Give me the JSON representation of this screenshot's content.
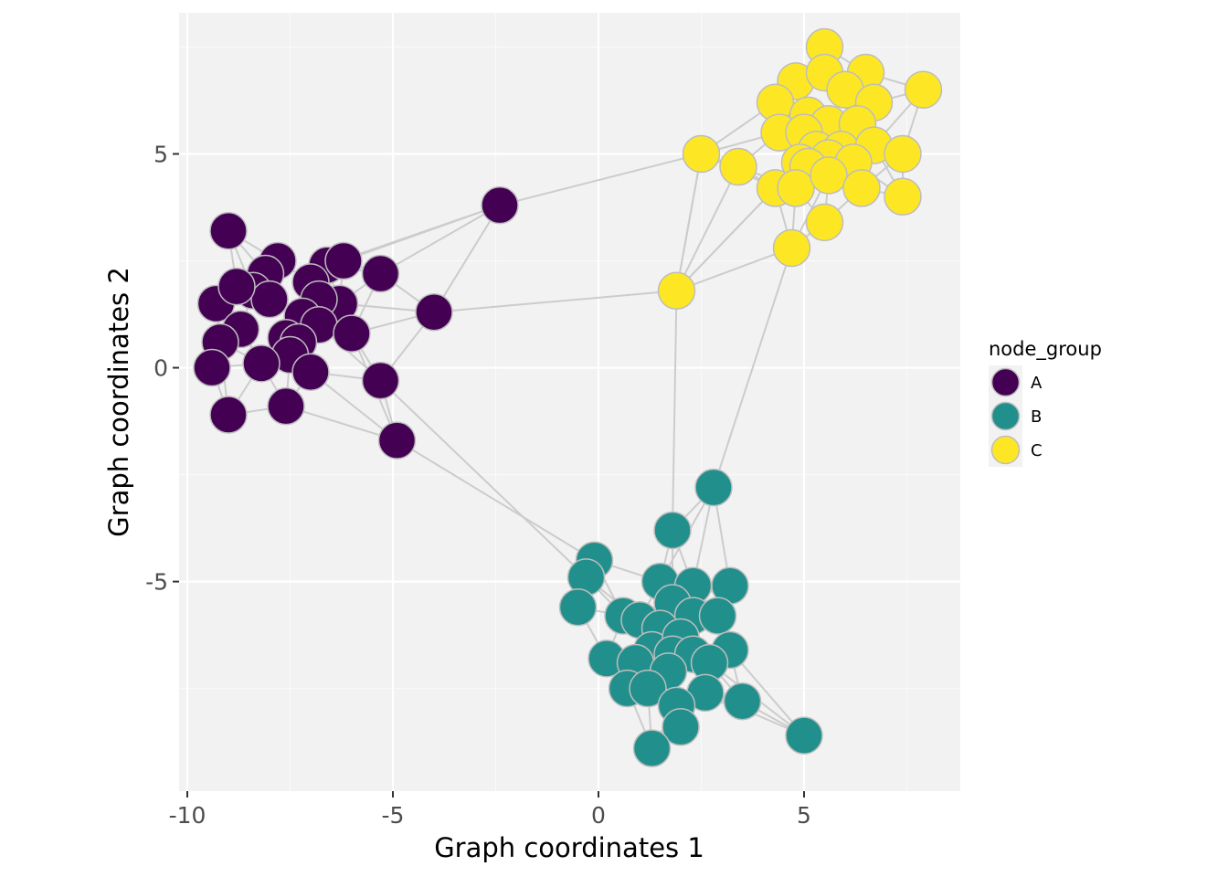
{
  "chart_data": {
    "type": "scatter",
    "subtype": "network-graph",
    "xlabel": "Graph coordinates 1",
    "ylabel": "Graph coordinates 2",
    "xlim": [
      -10.2,
      8.8
    ],
    "ylim": [
      -9.9,
      8.3
    ],
    "x_ticks": [
      -10,
      -5,
      0,
      5
    ],
    "x_tick_labels": [
      "-10",
      "-5",
      "0",
      "5"
    ],
    "y_ticks": [
      -5,
      0,
      5
    ],
    "y_tick_labels": [
      "-5",
      "0",
      "5"
    ],
    "grid": true,
    "legend": {
      "title": "node_group",
      "position": "right",
      "entries": [
        {
          "label": "A",
          "color": "#440154"
        },
        {
          "label": "B",
          "color": "#21908C"
        },
        {
          "label": "C",
          "color": "#FDE725"
        }
      ]
    },
    "colors": {
      "panel": "#f2f2f2",
      "grid_major": "#ffffff",
      "grid_minor": "#fafafa",
      "edge": "#cccccc",
      "node_stroke": "#bdbdbd"
    },
    "series": [
      {
        "name": "A",
        "color": "#440154",
        "points": [
          [
            -9.0,
            3.2
          ],
          [
            -7.8,
            2.5
          ],
          [
            -8.1,
            2.2
          ],
          [
            -6.6,
            2.4
          ],
          [
            -6.2,
            2.5
          ],
          [
            -5.3,
            2.2
          ],
          [
            -9.3,
            1.5
          ],
          [
            -8.4,
            1.8
          ],
          [
            -8.0,
            1.6
          ],
          [
            -7.0,
            2.0
          ],
          [
            -6.3,
            1.5
          ],
          [
            -6.8,
            1.6
          ],
          [
            -8.8,
            1.9
          ],
          [
            -4.0,
            1.3
          ],
          [
            -8.7,
            0.9
          ],
          [
            -7.2,
            1.2
          ],
          [
            -6.8,
            1.0
          ],
          [
            -6.0,
            0.8
          ],
          [
            -9.2,
            0.6
          ],
          [
            -7.6,
            0.7
          ],
          [
            -7.3,
            0.6
          ],
          [
            -7.5,
            0.3
          ],
          [
            -8.2,
            0.1
          ],
          [
            -7.0,
            -0.1
          ],
          [
            -9.4,
            0.0
          ],
          [
            -5.3,
            -0.3
          ],
          [
            -9.0,
            -1.1
          ],
          [
            -7.6,
            -0.9
          ],
          [
            -4.9,
            -1.7
          ],
          [
            -2.4,
            3.8
          ]
        ]
      },
      {
        "name": "B",
        "color": "#21908C",
        "points": [
          [
            2.8,
            -2.8
          ],
          [
            1.8,
            -3.8
          ],
          [
            -0.1,
            -4.5
          ],
          [
            -0.3,
            -4.9
          ],
          [
            1.5,
            -5.0
          ],
          [
            2.3,
            -5.1
          ],
          [
            3.2,
            -5.1
          ],
          [
            -0.5,
            -5.6
          ],
          [
            0.6,
            -5.8
          ],
          [
            1.0,
            -5.9
          ],
          [
            1.8,
            -5.5
          ],
          [
            2.3,
            -5.8
          ],
          [
            2.9,
            -5.8
          ],
          [
            1.5,
            -6.1
          ],
          [
            1.3,
            -6.6
          ],
          [
            2.0,
            -6.3
          ],
          [
            1.8,
            -6.7
          ],
          [
            2.3,
            -6.7
          ],
          [
            3.2,
            -6.6
          ],
          [
            0.2,
            -6.8
          ],
          [
            0.9,
            -6.9
          ],
          [
            1.7,
            -7.1
          ],
          [
            2.7,
            -6.9
          ],
          [
            0.7,
            -7.5
          ],
          [
            1.2,
            -7.5
          ],
          [
            2.6,
            -7.6
          ],
          [
            3.5,
            -7.8
          ],
          [
            1.9,
            -7.9
          ],
          [
            2.0,
            -8.4
          ],
          [
            5.0,
            -8.6
          ],
          [
            1.3,
            -8.9
          ]
        ]
      },
      {
        "name": "C",
        "color": "#FDE725",
        "points": [
          [
            5.5,
            7.5
          ],
          [
            4.8,
            6.7
          ],
          [
            6.5,
            6.9
          ],
          [
            5.5,
            6.9
          ],
          [
            6.0,
            6.5
          ],
          [
            7.9,
            6.5
          ],
          [
            4.3,
            6.2
          ],
          [
            6.7,
            6.2
          ],
          [
            5.1,
            5.9
          ],
          [
            5.6,
            5.7
          ],
          [
            6.3,
            5.7
          ],
          [
            4.4,
            5.5
          ],
          [
            5.0,
            5.5
          ],
          [
            2.5,
            5.0
          ],
          [
            5.3,
            5.1
          ],
          [
            5.9,
            5.1
          ],
          [
            6.7,
            5.2
          ],
          [
            7.4,
            5.0
          ],
          [
            3.4,
            4.7
          ],
          [
            4.9,
            4.8
          ],
          [
            5.6,
            4.9
          ],
          [
            6.2,
            4.8
          ],
          [
            4.3,
            4.2
          ],
          [
            5.1,
            4.7
          ],
          [
            4.8,
            4.2
          ],
          [
            5.6,
            4.5
          ],
          [
            6.4,
            4.2
          ],
          [
            7.4,
            4.0
          ],
          [
            5.5,
            3.4
          ],
          [
            4.7,
            2.8
          ],
          [
            1.9,
            1.8
          ]
        ]
      }
    ]
  }
}
